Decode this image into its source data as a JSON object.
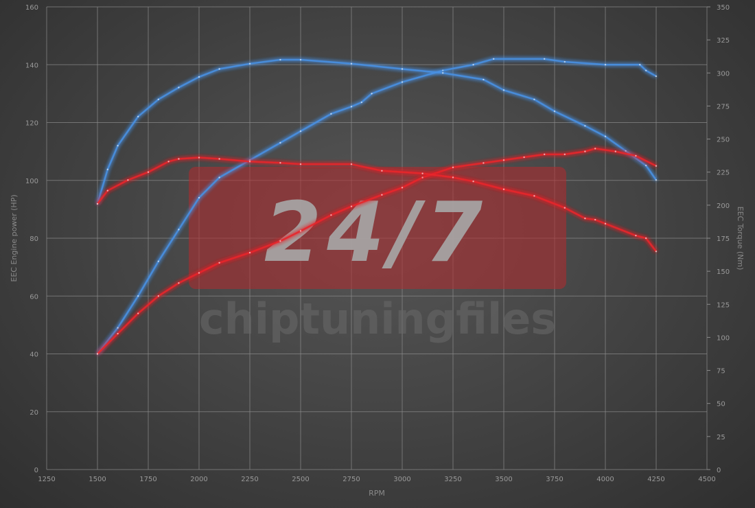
{
  "chart_data": {
    "type": "line",
    "xlabel": "RPM",
    "ylabel": "EEC Engine power (HP)",
    "y2label": "EEC Torque (Nm)",
    "xlim": [
      1250,
      4500
    ],
    "ylim": [
      0,
      160
    ],
    "y2lim": [
      0,
      350
    ],
    "xticks": [
      "1250",
      "1500",
      "1750",
      "2000",
      "2250",
      "2500",
      "2750",
      "3000",
      "3250",
      "3500",
      "3750",
      "4000",
      "4250",
      "4500"
    ],
    "yticks": [
      "0",
      "20",
      "40",
      "60",
      "80",
      "100",
      "120",
      "140",
      "160"
    ],
    "y2ticks": [
      "0",
      "25",
      "50",
      "75",
      "100",
      "125",
      "150",
      "175",
      "200",
      "225",
      "250",
      "275",
      "300",
      "325",
      "350"
    ],
    "grid": true,
    "series": [
      {
        "axis": "left",
        "color": "#4a90e2",
        "x": [
          1500,
          1600,
          1700,
          1800,
          1900,
          2000,
          2100,
          2250,
          2400,
          2500,
          2650,
          2750,
          2800,
          2850,
          3000,
          3200,
          3350,
          3450,
          3700,
          3800,
          4000,
          4170,
          4200,
          4250
        ],
        "values": [
          40,
          49,
          60,
          72,
          83,
          94,
          101,
          107,
          113,
          117,
          123,
          125.5,
          127,
          130,
          134,
          138,
          140,
          142,
          142,
          141,
          140,
          140,
          138,
          136
        ]
      },
      {
        "axis": "right",
        "color": "#4a90e2",
        "x": [
          1500,
          1550,
          1600,
          1700,
          1800,
          1900,
          2000,
          2100,
          2250,
          2400,
          2500,
          2750,
          3000,
          3200,
          3400,
          3500,
          3650,
          3750,
          3900,
          4000,
          4100,
          4200,
          4250
        ],
        "values": [
          201,
          227,
          245,
          267,
          280,
          289,
          297,
          303,
          307,
          310,
          310,
          307,
          303,
          300,
          295,
          287,
          280,
          271,
          260,
          252,
          241,
          230,
          219
        ]
      },
      {
        "axis": "left",
        "color": "#e8252a",
        "x": [
          1500,
          1600,
          1700,
          1800,
          1900,
          2000,
          2100,
          2250,
          2400,
          2500,
          2650,
          2750,
          2900,
          3000,
          3100,
          3250,
          3400,
          3500,
          3600,
          3700,
          3800,
          3900,
          3950,
          4050,
          4150,
          4250
        ],
        "values": [
          40,
          47,
          54,
          60,
          64.5,
          68,
          71.5,
          75,
          79,
          82.5,
          88,
          91,
          95,
          97.5,
          101,
          104.5,
          106,
          107,
          108,
          109,
          109,
          110,
          111,
          110,
          108.5,
          105
        ]
      },
      {
        "axis": "right",
        "color": "#e8252a",
        "x": [
          1500,
          1550,
          1650,
          1750,
          1850,
          1900,
          2000,
          2100,
          2250,
          2400,
          2500,
          2750,
          2900,
          3100,
          3250,
          3350,
          3500,
          3650,
          3800,
          3900,
          3950,
          4000,
          4150,
          4200,
          4250
        ],
        "values": [
          201,
          211,
          219,
          225,
          233,
          235,
          236,
          235,
          233,
          232,
          231,
          231,
          226,
          224,
          221,
          218,
          212,
          207,
          198,
          190,
          189,
          186,
          177,
          175,
          165
        ]
      }
    ]
  },
  "watermark": {
    "badge": "24/7",
    "brand": "chiptuningfiles"
  }
}
